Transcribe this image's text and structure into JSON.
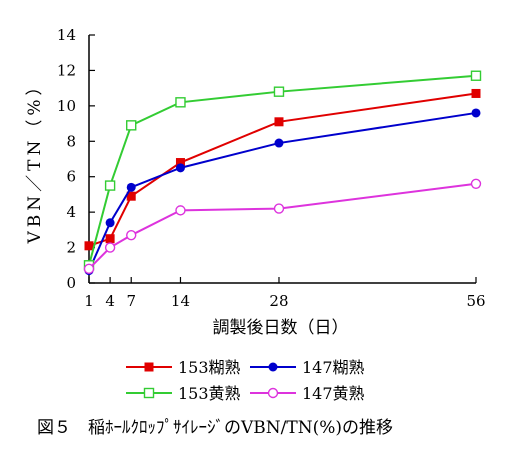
{
  "chart_data": {
    "type": "line",
    "xlabel": "調製後日数（日）",
    "ylabel": "VBN／TN（%）",
    "xlim": [
      1,
      56
    ],
    "ylim": [
      0,
      14
    ],
    "xticks": [
      1,
      4,
      7,
      14,
      28,
      56
    ],
    "yticks": [
      0,
      2,
      4,
      6,
      8,
      10,
      12,
      14
    ],
    "grid": false,
    "legend_position": "bottom",
    "series": [
      {
        "name": "153糊熟",
        "color": "#e00000",
        "marker": "filled-square",
        "x": [
          1,
          4,
          7,
          14,
          28,
          56
        ],
        "y": [
          2.1,
          2.5,
          4.9,
          6.8,
          9.1,
          10.7
        ]
      },
      {
        "name": "147糊熟",
        "color": "#0000cc",
        "marker": "filled-circle",
        "x": [
          1,
          4,
          7,
          14,
          28,
          56
        ],
        "y": [
          0.7,
          3.4,
          5.4,
          6.5,
          7.9,
          9.6
        ]
      },
      {
        "name": "153黄熟",
        "color": "#33cc33",
        "marker": "open-square",
        "x": [
          1,
          4,
          7,
          14,
          28,
          56
        ],
        "y": [
          1.0,
          5.5,
          8.9,
          10.2,
          10.8,
          11.7
        ]
      },
      {
        "name": "147黄熟",
        "color": "#dd33dd",
        "marker": "open-circle",
        "x": [
          1,
          4,
          7,
          14,
          28,
          56
        ],
        "y": [
          0.8,
          2.0,
          2.7,
          4.1,
          4.2,
          5.6
        ]
      }
    ],
    "caption": "図５　稲ﾎｰﾙｸﾛｯﾌﾟｻｲﾚｰｼﾞのVBN/TN(%)の推移"
  }
}
